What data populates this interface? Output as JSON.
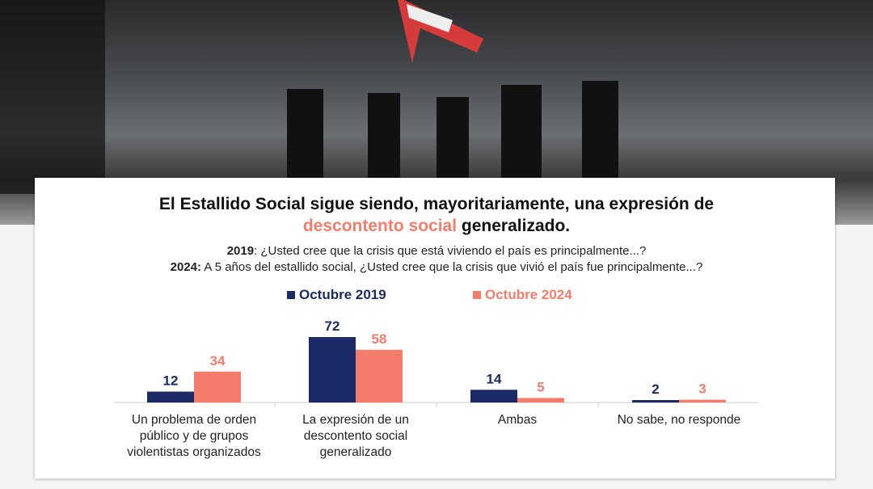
{
  "title": {
    "line1": "El Estallido Social sigue siendo, mayoritariamente, una expresión de",
    "highlight": "descontento social",
    "rest": " generalizado."
  },
  "questions": [
    {
      "year": "2019",
      "text": ": ¿Usted cree que la crisis que está viviendo el país es principalmente...?"
    },
    {
      "year": "2024:",
      "text": " A 5 años del estallido social, ¿Usted cree que la crisis que vivió el país fue principalmente...?"
    }
  ],
  "colors": {
    "2019": "#1b2a66",
    "2024": "#f47c6c"
  },
  "chart_data": {
    "type": "bar",
    "categories": [
      "Un problema de orden público y de grupos violentistas organizados",
      "La expresión de un descontento social generalizado",
      "Ambas",
      "No sabe, no responde"
    ],
    "series": [
      {
        "name": "Octubre 2019",
        "values": [
          12,
          72,
          14,
          2
        ]
      },
      {
        "name": "Octubre 2024",
        "values": [
          34,
          58,
          5,
          3
        ]
      }
    ],
    "ylim": [
      0,
      80
    ],
    "legend": "top-center",
    "grid": false
  }
}
